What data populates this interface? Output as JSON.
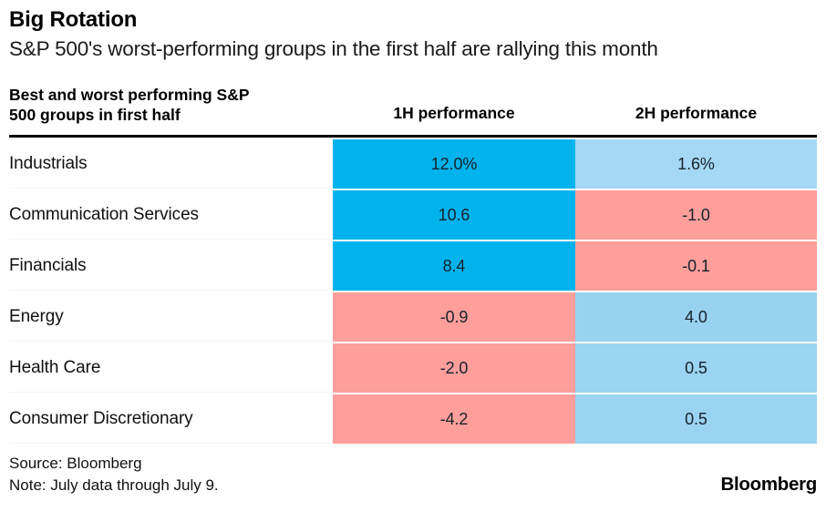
{
  "header": {
    "title": "Big Rotation",
    "subtitle": "S&P 500's worst-performing groups in the first half are rallying this month"
  },
  "table": {
    "group_header_line1": "Best and worst performing S&P",
    "group_header_line2": "500 groups in first half",
    "col_1h": "1H performance",
    "col_2h": "2H performance",
    "rows": [
      {
        "label": "Industrials",
        "h1": {
          "text": "12.0%",
          "color": "#00b3ec"
        },
        "h2": {
          "text": "1.6%",
          "color": "#a5d8f5"
        }
      },
      {
        "label": "Communication Services",
        "h1": {
          "text": "10.6",
          "color": "#00b3ec"
        },
        "h2": {
          "text": "-1.0",
          "color": "#fe9f9b"
        }
      },
      {
        "label": "Financials",
        "h1": {
          "text": "8.4",
          "color": "#00b3ec"
        },
        "h2": {
          "text": "-0.1",
          "color": "#fe9f9b"
        }
      },
      {
        "label": "Energy",
        "h1": {
          "text": "-0.9",
          "color": "#fe9f9b"
        },
        "h2": {
          "text": "4.0",
          "color": "#99d1f1"
        }
      },
      {
        "label": "Health Care",
        "h1": {
          "text": "-2.0",
          "color": "#fe9f9b"
        },
        "h2": {
          "text": "0.5",
          "color": "#9bd3f2"
        }
      },
      {
        "label": "Consumer Discretionary",
        "h1": {
          "text": "-4.2",
          "color": "#fe9f9b"
        },
        "h2": {
          "text": "0.5",
          "color": "#9bd3f2"
        }
      }
    ]
  },
  "footer": {
    "source": "Source: Bloomberg",
    "note": "Note: July data through July 9.",
    "logo": "Bloomberg"
  },
  "colors": {
    "strong_positive": "#00b3ec",
    "mild_positive": "#9ed5f3",
    "negative": "#fe9f9b",
    "rule": "#000000"
  },
  "chart_data": {
    "type": "table",
    "title": "Big Rotation",
    "subtitle": "S&P 500's worst-performing groups in the first half are rallying this month",
    "row_header": "Best and worst performing S&P 500 groups in first half",
    "categories": [
      "Industrials",
      "Communication Services",
      "Financials",
      "Energy",
      "Health Care",
      "Consumer Discretionary"
    ],
    "series": [
      {
        "name": "1H performance",
        "unit": "%",
        "values": [
          12.0,
          10.6,
          8.4,
          -0.9,
          -2.0,
          -4.2
        ]
      },
      {
        "name": "2H performance",
        "unit": "%",
        "values": [
          1.6,
          -1.0,
          -0.1,
          4.0,
          0.5,
          0.5
        ]
      }
    ],
    "cell_color_rule": "vivid cyan = strongly positive, light blue = mildly positive, pink = negative",
    "source": "Bloomberg",
    "note": "July data through July 9."
  }
}
